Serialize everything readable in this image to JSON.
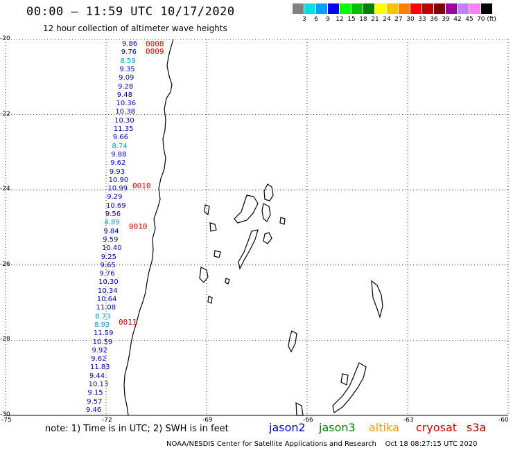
{
  "header": {
    "title": "00:00 – 11:59 UTC 10/17/2020",
    "subtitle": "12 hour collection of altimeter wave heights"
  },
  "colorbar": {
    "colors": [
      "#808080",
      "#00e0e0",
      "#00a0ff",
      "#0000ff",
      "#00ff00",
      "#00c000",
      "#008000",
      "#ffff00",
      "#ffc000",
      "#ff8000",
      "#ff0000",
      "#c00000",
      "#800000",
      "#a000a0",
      "#c080ff",
      "#ff80ff",
      "#000000"
    ],
    "labels": [
      "3",
      "6",
      "9",
      "12",
      "15",
      "18",
      "21",
      "24",
      "27",
      "30",
      "33",
      "36",
      "39",
      "42",
      "45",
      "70 (ft)"
    ]
  },
  "map": {
    "lat_labels": [
      "-20",
      "-22",
      "-24",
      "-26",
      "-28",
      "-30"
    ],
    "lon_labels": [
      "-75",
      "-72",
      "-69",
      "-66",
      "-63",
      "-60"
    ],
    "lat_values": [
      -20,
      -22,
      -24,
      -26,
      -28,
      -30
    ],
    "lon_values": [
      -75,
      -72,
      -69,
      -66,
      -63,
      -60
    ],
    "swh_color_default": "#0000c0",
    "swh_color_light": "#00a0c0",
    "swh": [
      {
        "v": "9.86",
        "c": "d"
      },
      {
        "v": "9.76",
        "c": "d"
      },
      {
        "v": "8.59",
        "c": "l"
      },
      {
        "v": "9.35",
        "c": "d"
      },
      {
        "v": "9.09",
        "c": "d"
      },
      {
        "v": "9.28",
        "c": "d"
      },
      {
        "v": "9.48",
        "c": "d"
      },
      {
        "v": "10.36",
        "c": "d"
      },
      {
        "v": "10.38",
        "c": "d"
      },
      {
        "v": "10.30",
        "c": "d"
      },
      {
        "v": "11.35",
        "c": "d"
      },
      {
        "v": "9.66",
        "c": "d"
      },
      {
        "v": "8.74",
        "c": "l"
      },
      {
        "v": "9.88",
        "c": "d"
      },
      {
        "v": "9.62",
        "c": "d"
      },
      {
        "v": "9.93",
        "c": "d"
      },
      {
        "v": "10.90",
        "c": "d"
      },
      {
        "v": "10.99",
        "c": "d"
      },
      {
        "v": "9.29",
        "c": "d"
      },
      {
        "v": "10.69",
        "c": "d"
      },
      {
        "v": "9.56",
        "c": "d"
      },
      {
        "v": "8.89",
        "c": "l"
      },
      {
        "v": "9.84",
        "c": "d"
      },
      {
        "v": "9.59",
        "c": "d"
      },
      {
        "v": "10.40",
        "c": "d"
      },
      {
        "v": "9.25",
        "c": "d"
      },
      {
        "v": "9.65",
        "c": "d"
      },
      {
        "v": "9.76",
        "c": "d"
      },
      {
        "v": "10.30",
        "c": "d"
      },
      {
        "v": "10.34",
        "c": "d"
      },
      {
        "v": "10.64",
        "c": "d"
      },
      {
        "v": "11.08",
        "c": "d"
      },
      {
        "v": "8.73",
        "c": "l"
      },
      {
        "v": "8.93",
        "c": "l"
      },
      {
        "v": "11.59",
        "c": "d"
      },
      {
        "v": "10.59",
        "c": "d"
      },
      {
        "v": "9.92",
        "c": "d"
      },
      {
        "v": "9.62",
        "c": "d"
      },
      {
        "v": "11.83",
        "c": "d"
      },
      {
        "v": "9.44",
        "c": "d"
      },
      {
        "v": "10.13",
        "c": "d"
      },
      {
        "v": "9.15",
        "c": "d"
      },
      {
        "v": "9.57",
        "c": "d"
      },
      {
        "v": "9.46",
        "c": "d"
      }
    ],
    "time_tags": [
      "0008",
      "0009",
      "0010",
      "0010",
      "0011"
    ]
  },
  "footer": {
    "note": "note: 1) Time is in UTC; 2) SWH is in feet",
    "legend": [
      {
        "name": "jason2",
        "color": "#0000c0"
      },
      {
        "name": "jason3",
        "color": "#008000"
      },
      {
        "name": "altika",
        "color": "#ff9900"
      },
      {
        "name": "cryosat",
        "color": "#cc0000"
      },
      {
        "name": "s3a",
        "color": "#990000"
      }
    ],
    "credit": "NOAA/NESDIS Center for Satellite Applications and Research    Oct 18 08:27:15 UTC 2020"
  }
}
